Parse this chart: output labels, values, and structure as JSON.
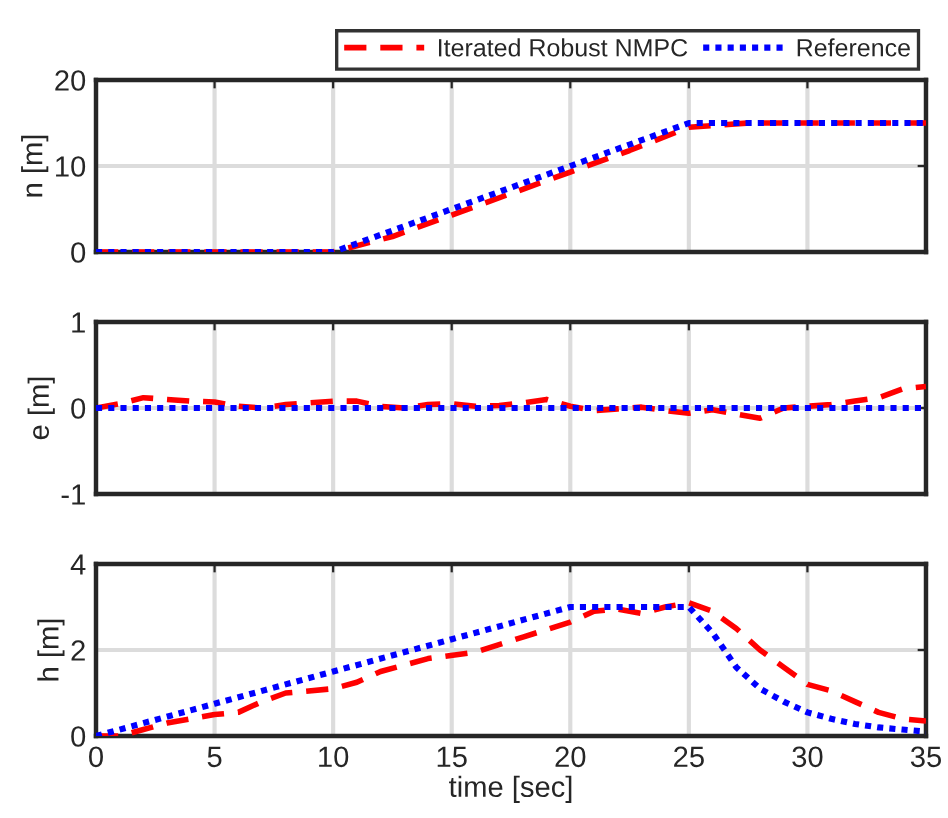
{
  "chart_data": [
    {
      "type": "line",
      "ylabel": "n [m]",
      "xlim": [
        0,
        35
      ],
      "ylim": [
        0,
        20
      ],
      "xticks": [
        0,
        5,
        10,
        15,
        20,
        25,
        30,
        35
      ],
      "yticks": [
        0,
        10,
        20
      ],
      "grid": true,
      "legend": "top right",
      "tick_labels": "y",
      "x": [
        0,
        2.5,
        5,
        7.5,
        10,
        12.5,
        15,
        17.5,
        20,
        22.5,
        25,
        27.5,
        30,
        32.5,
        35
      ],
      "series": [
        {
          "name": "Iterated Robust NMPC",
          "color": "#ff0000",
          "line_style": "dashed",
          "values": [
            0,
            0,
            0,
            0,
            0,
            1.8,
            4.3,
            6.8,
            9.3,
            11.8,
            14.5,
            15,
            15,
            15,
            15
          ]
        },
        {
          "name": "Reference",
          "color": "#0000ff",
          "line_style": "dotted",
          "values": [
            0,
            0,
            0,
            0,
            0,
            2.5,
            5,
            7.5,
            10,
            12.5,
            15,
            15,
            15,
            15,
            15
          ]
        }
      ]
    },
    {
      "type": "line",
      "ylabel": "e [m]",
      "xlim": [
        0,
        35
      ],
      "ylim": [
        -1,
        1
      ],
      "xticks": [
        0,
        5,
        10,
        15,
        20,
        25,
        30,
        35
      ],
      "yticks": [
        -1,
        0,
        1
      ],
      "grid": true,
      "tick_labels": "y",
      "x": [
        0,
        1,
        2,
        3,
        4,
        5,
        6,
        7,
        8,
        9,
        10,
        11,
        12,
        13,
        14,
        15,
        16,
        17,
        18,
        19,
        20,
        21,
        22,
        23,
        24,
        25,
        26,
        27,
        28,
        29,
        30,
        31,
        32,
        33,
        34,
        35
      ],
      "series": [
        {
          "color": "#ff0000",
          "line_style": "dashed",
          "values": [
            0,
            0.05,
            0.12,
            0.1,
            0.08,
            0.07,
            0.02,
            0,
            0.04,
            0.06,
            0.08,
            0.08,
            0.02,
            0,
            0.04,
            0.05,
            0.02,
            0.03,
            0.06,
            0.1,
            0.02,
            -0.03,
            -0.01,
            0.01,
            -0.03,
            -0.06,
            -0.02,
            -0.07,
            -0.12,
            0.0,
            0.02,
            0.04,
            0.08,
            0.12,
            0.22,
            0.25
          ]
        },
        {
          "color": "#0000ff",
          "line_style": "dotted",
          "values": [
            0,
            0,
            0,
            0,
            0,
            0,
            0,
            0,
            0,
            0,
            0,
            0,
            0,
            0,
            0,
            0,
            0,
            0,
            0,
            0,
            0,
            0,
            0,
            0,
            0,
            0,
            0,
            0,
            0,
            0,
            0,
            0,
            0,
            0,
            0,
            0
          ]
        }
      ]
    },
    {
      "type": "line",
      "ylabel": "h [m]",
      "xlabel": "time [sec]",
      "xlim": [
        0,
        35
      ],
      "ylim": [
        0,
        4
      ],
      "xticks": [
        0,
        5,
        10,
        15,
        20,
        25,
        30,
        35
      ],
      "yticks": [
        0,
        2,
        4
      ],
      "grid": true,
      "series": [
        {
          "color": "#ff0000",
          "line_style": "dashed",
          "x": [
            0,
            1,
            2,
            3,
            5,
            6,
            7,
            8,
            10,
            11,
            12,
            14,
            16,
            18,
            20,
            21,
            22,
            23,
            24,
            25,
            26,
            27,
            28,
            29,
            30,
            31,
            32,
            33,
            34,
            35
          ],
          "values": [
            0,
            0,
            0.15,
            0.3,
            0.5,
            0.55,
            0.8,
            1.0,
            1.1,
            1.25,
            1.5,
            1.8,
            1.95,
            2.3,
            2.65,
            2.9,
            2.95,
            2.85,
            3.0,
            3.1,
            2.9,
            2.5,
            2.0,
            1.6,
            1.2,
            1.05,
            0.8,
            0.55,
            0.4,
            0.35
          ]
        },
        {
          "color": "#0000ff",
          "line_style": "dotted",
          "x": [
            0,
            5,
            10,
            15,
            20,
            25,
            26,
            27,
            28,
            29,
            30,
            31,
            32,
            33,
            34,
            35
          ],
          "values": [
            0,
            0.75,
            1.5,
            2.25,
            3,
            3,
            2.4,
            1.6,
            1.1,
            0.8,
            0.55,
            0.4,
            0.28,
            0.2,
            0.15,
            0.1
          ]
        }
      ]
    }
  ]
}
